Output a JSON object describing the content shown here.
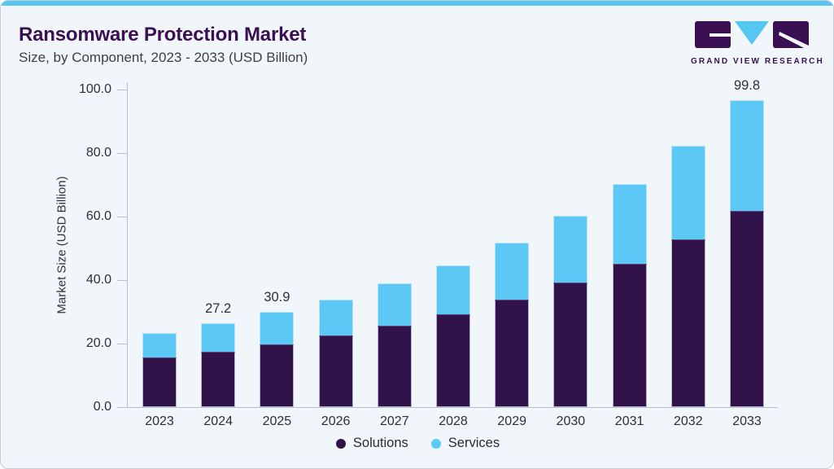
{
  "header": {
    "title": "Ransomware Protection Market",
    "subtitle": "Size, by Component, 2023 - 2033 (USD Billion)",
    "logo_text": "GRAND VIEW RESEARCH"
  },
  "colors": {
    "accent_cyan": "#56C7F0",
    "solutions": "#32124A",
    "services": "#5BC8F5",
    "title_purple": "#3A1053",
    "axis_line": "#B9BFC6",
    "text_dark": "#2E2F38",
    "card_bg": "#F0F6FA"
  },
  "chart_data": {
    "type": "bar",
    "stacked": true,
    "title": "Ransomware Protection Market Size, by Component, 2023 - 2033 (USD Billion)",
    "categories": [
      "2023",
      "2024",
      "2025",
      "2026",
      "2027",
      "2028",
      "2029",
      "2030",
      "2031",
      "2032",
      "2033"
    ],
    "series": [
      {
        "name": "Solutions",
        "color_key": "solutions",
        "values": [
          16.1,
          18.1,
          20.3,
          23.2,
          26.4,
          30.2,
          34.8,
          40.6,
          46.6,
          54.6,
          63.8
        ]
      },
      {
        "name": "Services",
        "color_key": "services",
        "values": [
          7.9,
          9.1,
          10.6,
          11.8,
          13.7,
          15.9,
          18.6,
          21.7,
          25.8,
          30.4,
          36.0
        ]
      }
    ],
    "totals": [
      24.0,
      27.2,
      30.9,
      35.0,
      40.1,
      46.1,
      53.4,
      62.3,
      72.4,
      85.0,
      99.8
    ],
    "bar_labels": [
      "",
      "27.2",
      "30.9",
      "",
      "",
      "",
      "",
      "",
      "",
      "",
      "99.8"
    ],
    "ylabel": "Market Size (USD Billion)",
    "xlabel": "",
    "y_ticks": [
      "0.0",
      "20.0",
      "40.0",
      "60.0",
      "80.0",
      "100.0"
    ],
    "ylim": [
      0,
      100
    ],
    "grid": false,
    "legend_position": "bottom"
  }
}
